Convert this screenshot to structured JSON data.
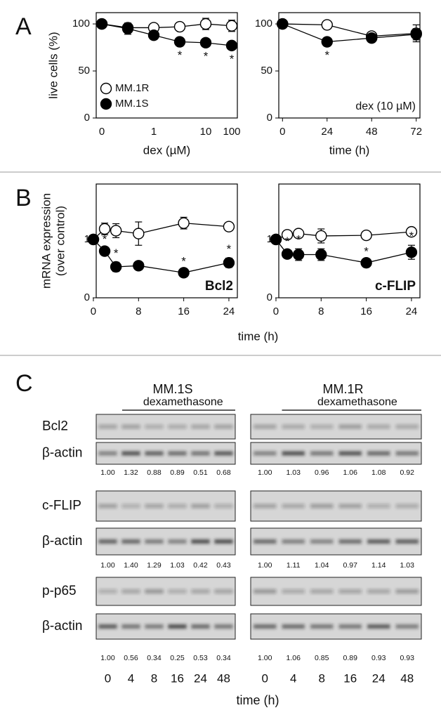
{
  "chart_data": [
    {
      "type": "line",
      "panel": "A",
      "ylabel": [
        "live cells (%)"
      ],
      "xlabel": "dex (µM)",
      "categories": [
        "0",
        null,
        "1",
        null,
        "10",
        "100"
      ],
      "ylim": [
        0,
        112
      ],
      "yticks": [
        0,
        50,
        100
      ],
      "legend": "lower left",
      "flag_position": "below",
      "series": [
        {
          "name": "MM.1R",
          "color": "#000000",
          "fill": "#ffffff",
          "values": [
            100,
            96,
            96,
            97,
            100,
            98
          ],
          "errors": [
            0,
            4,
            4,
            3,
            6,
            6
          ],
          "flags": [
            null,
            null,
            null,
            null,
            null,
            null
          ]
        },
        {
          "name": "MM.1S",
          "color": "#000000",
          "fill": "#000000",
          "values": [
            100,
            95,
            88,
            81,
            80,
            77
          ],
          "errors": [
            0,
            6,
            3,
            3,
            3,
            2
          ],
          "flags": [
            null,
            null,
            null,
            "*",
            "*",
            "*"
          ]
        }
      ]
    },
    {
      "type": "line",
      "xlabel": "time (h)",
      "note": "dex (10 µM)",
      "note_weight": "normal",
      "x": [
        0,
        24,
        48,
        72
      ],
      "xlim": [
        -2,
        74
      ],
      "xticks": [
        0,
        24,
        48,
        72
      ],
      "ylim": [
        0,
        112
      ],
      "yticks": [
        0,
        50,
        100
      ],
      "flag_position": "below",
      "series": [
        {
          "color": "#000000",
          "fill": "#ffffff",
          "values": [
            100,
            99,
            87,
            90
          ],
          "errors": [
            0,
            2,
            4,
            9
          ],
          "flags": [
            null,
            null,
            null,
            null
          ]
        },
        {
          "color": "#000000",
          "fill": "#000000",
          "values": [
            100,
            81,
            85,
            89
          ],
          "errors": [
            0,
            4,
            4,
            6
          ],
          "flags": [
            null,
            "*",
            null,
            null
          ]
        }
      ]
    },
    {
      "type": "line",
      "panel": "B",
      "ylabel": [
        "mRNA expression",
        "(over control)"
      ],
      "note": "Bcl2",
      "note_weight": "bold",
      "x": [
        0,
        2,
        4,
        8,
        16,
        24
      ],
      "xlim": [
        0.5,
        25.5
      ],
      "xticks": [
        0,
        8,
        16,
        24
      ],
      "ylim": [
        0,
        1.95
      ],
      "yticks": [
        0,
        1
      ],
      "flag_position": "above",
      "series": [
        {
          "color": "#000000",
          "fill": "#ffffff",
          "values": [
            1,
            1.18,
            1.15,
            1.1,
            1.28,
            1.22
          ],
          "errors": [
            0,
            0.1,
            0.12,
            0.2,
            0.1,
            0.04
          ],
          "flags": [
            null,
            null,
            null,
            null,
            null,
            null
          ]
        },
        {
          "color": "#000000",
          "fill": "#000000",
          "values": [
            1,
            0.8,
            0.53,
            0.55,
            0.43,
            0.6
          ],
          "errors": [
            0,
            0.05,
            0.08,
            0.07,
            0.04,
            0.08
          ],
          "flags": [
            null,
            "*",
            "*",
            null,
            "*",
            "*"
          ]
        }
      ]
    },
    {
      "type": "line",
      "xlabel": "time (h)",
      "note": "c-FLIP",
      "note_weight": "bold",
      "x": [
        0,
        2,
        4,
        8,
        16,
        24
      ],
      "xlim": [
        0.5,
        25.5
      ],
      "xticks": [
        0,
        8,
        16,
        24
      ],
      "ylim": [
        0,
        1.95
      ],
      "yticks": [
        0,
        1
      ],
      "flag_position": "above",
      "series": [
        {
          "color": "#000000",
          "fill": "#ffffff",
          "values": [
            1,
            1.08,
            1.1,
            1.06,
            1.07,
            1.13
          ],
          "errors": [
            0,
            0.03,
            0.03,
            0.12,
            0.03,
            0.03
          ],
          "flags": [
            null,
            null,
            null,
            null,
            null,
            null
          ]
        },
        {
          "color": "#000000",
          "fill": "#000000",
          "values": [
            1,
            0.75,
            0.74,
            0.74,
            0.6,
            0.78
          ],
          "errors": [
            0,
            0.06,
            0.1,
            0.1,
            0.04,
            0.12
          ],
          "flags": [
            null,
            "*",
            "*",
            null,
            "*",
            "*"
          ]
        }
      ]
    }
  ],
  "blots": {
    "panel": "C",
    "proteins": [
      "Bcl2",
      "c-FLIP",
      "p-p65"
    ],
    "loading_control": "β-actin",
    "lanes": [
      "0",
      "4",
      "8",
      "16",
      "24",
      "48"
    ],
    "lane_label": "time (h)",
    "cell_lines": [
      {
        "name": "MM.1S",
        "treatment": "dexamethasone",
        "quantification": [
          [
            "1.00",
            "1.32",
            "0.88",
            "0.89",
            "0.51",
            "0.68"
          ],
          [
            "1.00",
            "1.40",
            "1.29",
            "1.03",
            "0.42",
            "0.43"
          ],
          [
            "1.00",
            "0.56",
            "0.34",
            "0.25",
            "0.53",
            "0.34"
          ]
        ]
      },
      {
        "name": "MM.1R",
        "treatment": "dexamethasone",
        "quantification": [
          [
            "1.00",
            "1.03",
            "0.96",
            "1.06",
            "1.08",
            "0.92"
          ],
          [
            "1.00",
            "1.11",
            "1.04",
            "0.97",
            "1.14",
            "1.03"
          ],
          [
            "1.00",
            "1.06",
            "0.85",
            "0.89",
            "0.93",
            "0.93"
          ]
        ]
      }
    ]
  }
}
